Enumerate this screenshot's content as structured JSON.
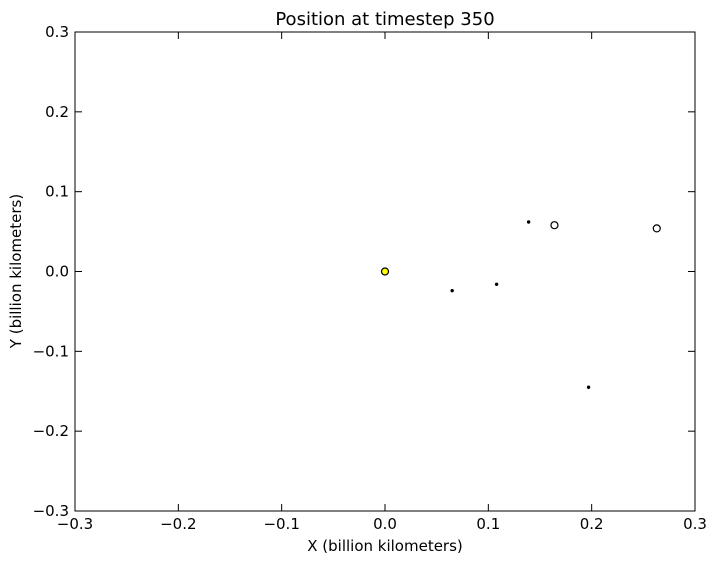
{
  "chart_data": {
    "type": "scatter",
    "title": "Position at timestep 350",
    "xlabel": "X (billion kilometers)",
    "ylabel": "Y (billion kilometers)",
    "xlim": [
      -0.3,
      0.3
    ],
    "ylim": [
      -0.3,
      0.3
    ],
    "xticks": [
      -0.3,
      -0.2,
      -0.1,
      0.0,
      0.1,
      0.2,
      0.3
    ],
    "yticks": [
      -0.3,
      -0.2,
      -0.1,
      0.0,
      0.1,
      0.2,
      0.3
    ],
    "xtick_labels": [
      "−0.3",
      "−0.2",
      "−0.1",
      "0.0",
      "0.1",
      "0.2",
      "0.3"
    ],
    "ytick_labels": [
      "−0.3",
      "−0.2",
      "−0.1",
      "0.0",
      "0.1",
      "0.2",
      "0.3"
    ],
    "grid": false,
    "points": [
      {
        "x": 0.0,
        "y": 0.0,
        "color": "#ffff00",
        "size": "large"
      },
      {
        "x": 0.065,
        "y": -0.024,
        "color": "#000000",
        "size": "small"
      },
      {
        "x": 0.108,
        "y": -0.016,
        "color": "#000000",
        "size": "small"
      },
      {
        "x": 0.139,
        "y": 0.062,
        "color": "#000000",
        "size": "small"
      },
      {
        "x": 0.164,
        "y": 0.058,
        "color": "#ffffff",
        "size": "large"
      },
      {
        "x": 0.263,
        "y": 0.054,
        "color": "#ffffff",
        "size": "large"
      },
      {
        "x": 0.197,
        "y": -0.145,
        "color": "#000000",
        "size": "small"
      }
    ]
  }
}
